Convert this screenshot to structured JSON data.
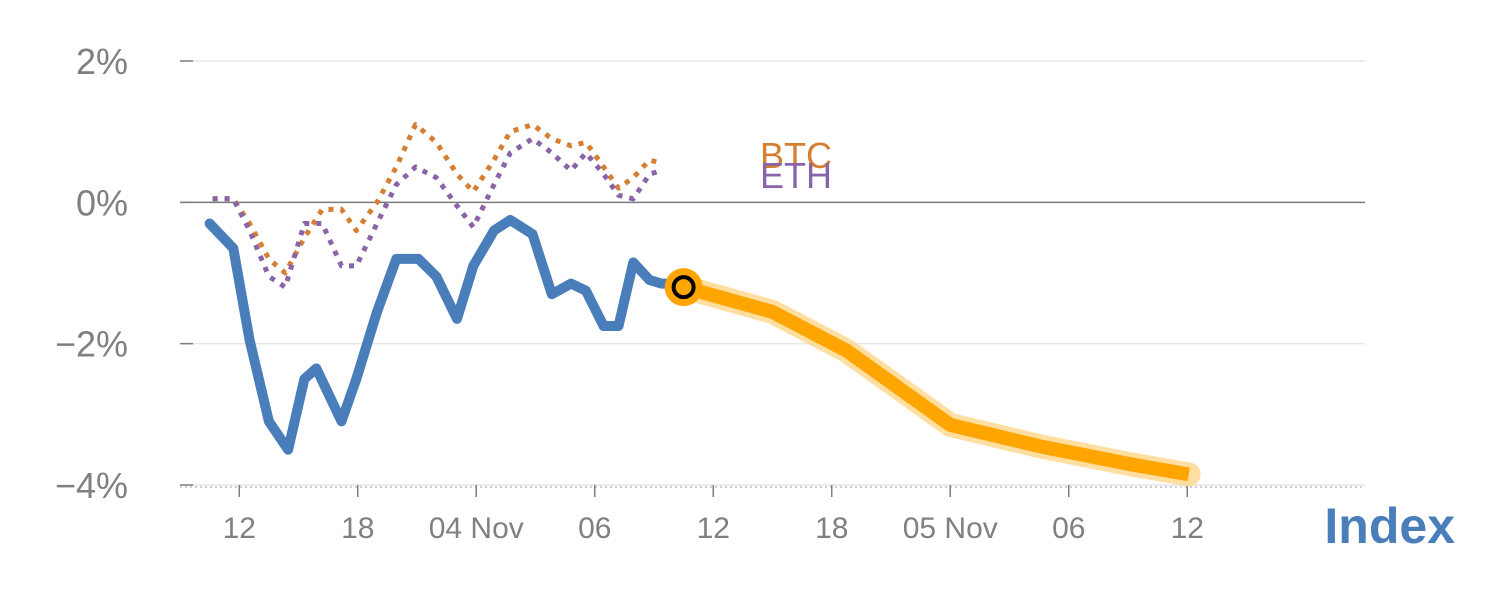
{
  "chart_data": {
    "type": "line",
    "y_axis": {
      "ticks": [
        {
          "value": 2,
          "label": "2%"
        },
        {
          "value": 0,
          "label": "0%"
        },
        {
          "value": -2,
          "label": "−2%"
        },
        {
          "value": -4,
          "label": "−4%"
        }
      ],
      "ylim": [
        -4,
        2
      ],
      "unit": "%"
    },
    "x_axis": {
      "xlim": [
        0,
        80
      ],
      "ticks": [
        {
          "x": 4,
          "label": "12"
        },
        {
          "x": 12,
          "label": "18"
        },
        {
          "x": 20,
          "label": "04 Nov"
        },
        {
          "x": 28,
          "label": "06"
        },
        {
          "x": 36,
          "label": "12"
        },
        {
          "x": 44,
          "label": "18"
        },
        {
          "x": 52,
          "label": "05 Nov"
        },
        {
          "x": 60,
          "label": "06"
        },
        {
          "x": 68,
          "label": "12"
        }
      ]
    },
    "series": [
      {
        "name": "Index",
        "color": "#4a7ebb",
        "style": "solid",
        "x": [
          2,
          3.6,
          4.7,
          6,
          7.3,
          8.4,
          9.2,
          10.9,
          11.9,
          13.3,
          14.6,
          16.1,
          17.3,
          18.7,
          19.8,
          21.2,
          22.3,
          23.8,
          25.1,
          26.4,
          27.4,
          28.6,
          29.6,
          30.6,
          31.7,
          32.5,
          33.2
        ],
        "y": [
          -0.3,
          -0.65,
          -1.95,
          -3.1,
          -3.5,
          -2.5,
          -2.35,
          -3.1,
          -2.5,
          -1.55,
          -0.8,
          -0.8,
          -1.05,
          -1.65,
          -0.9,
          -0.4,
          -0.25,
          -0.45,
          -1.3,
          -1.15,
          -1.25,
          -1.75,
          -1.75,
          -0.85,
          -1.1,
          -1.15,
          -1.15
        ]
      },
      {
        "name": "BTC",
        "color": "#d67f33",
        "style": "dotted",
        "x": [
          2.2,
          3.6,
          4.7,
          6,
          7.1,
          8.4,
          9.6,
          10.9,
          11.9,
          13.3,
          14.6,
          15.9,
          17.3,
          18.7,
          19.8,
          21.2,
          22.3,
          23.8,
          25.1,
          26.4,
          27.4,
          28.6,
          29.6,
          30.6,
          31.7,
          32.5
        ],
        "y": [
          0.05,
          0.05,
          -0.3,
          -0.8,
          -1.0,
          -0.5,
          -0.1,
          -0.1,
          -0.4,
          0.0,
          0.5,
          1.1,
          0.85,
          0.4,
          0.15,
          0.6,
          1.0,
          1.1,
          0.9,
          0.8,
          0.85,
          0.5,
          0.2,
          0.35,
          0.6,
          0.55
        ]
      },
      {
        "name": "ETH",
        "color": "#8964a8",
        "style": "dotted",
        "x": [
          2.2,
          3.6,
          4.7,
          6,
          7.1,
          8.4,
          9.6,
          10.9,
          11.9,
          13.3,
          14.6,
          15.9,
          17.3,
          18.7,
          19.8,
          21.2,
          22.3,
          23.8,
          25.1,
          26.4,
          27.4,
          28.6,
          29.6,
          30.6,
          31.7,
          32.5
        ],
        "y": [
          0.05,
          0.05,
          -0.4,
          -1.05,
          -1.2,
          -0.3,
          -0.3,
          -0.9,
          -0.9,
          -0.3,
          0.25,
          0.5,
          0.35,
          -0.05,
          -0.35,
          0.25,
          0.7,
          0.9,
          0.7,
          0.45,
          0.7,
          0.4,
          0.1,
          0.05,
          0.4,
          0.45
        ]
      },
      {
        "name": "forecast",
        "color": "#ffa500",
        "style": "solid",
        "x": [
          34,
          40,
          45,
          52,
          58,
          64,
          68.1
        ],
        "y": [
          -1.2,
          -1.55,
          -2.1,
          -3.15,
          -3.45,
          -3.7,
          -3.85
        ]
      }
    ],
    "marker": {
      "x": 34,
      "y": -1.2
    },
    "series_labels": [
      {
        "name": "BTC",
        "text": "BTC",
        "color": "#d67f33"
      },
      {
        "name": "ETH",
        "text": "ETH",
        "color": "#8964a8"
      }
    ],
    "index_label": {
      "text": "Index",
      "color": "#4a7ebb"
    },
    "grid": true,
    "zero_line": true
  }
}
